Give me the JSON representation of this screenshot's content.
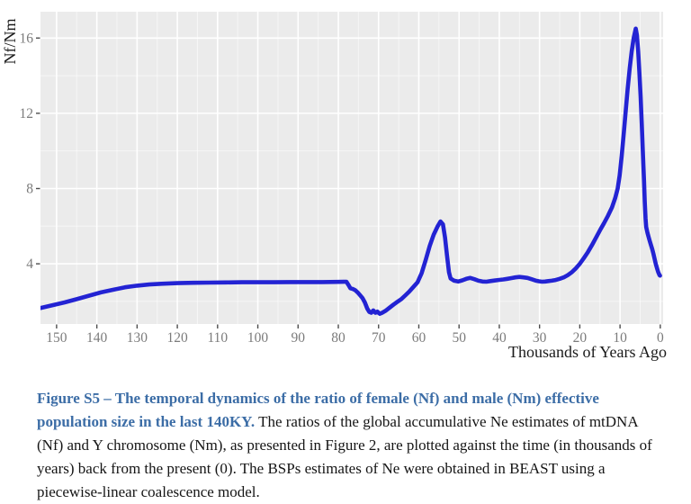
{
  "figure": {
    "y_axis_title": "Nf/Nm",
    "x_axis_title": "Thousands of Years Ago"
  },
  "caption": {
    "title": "Figure S5 – The temporal dynamics of the ratio of female (Nf) and male (Nm) effective population size in the last 140KY.",
    "body": " The ratios of the global accumulative Ne estimates of mtDNA (Nf) and Y chromosome (Nm), as presented in Figure 2, are plotted against the time (in thousands of years) back from the present (0). The BSPs estimates of Ne were obtained in BEAST using a piecewise-linear coalescence model."
  },
  "colors": {
    "line": "#2323d3",
    "panel_background": "#ebebeb",
    "grid_major": "#ffffff",
    "grid_minor": "rgba(255,255,255,0.55)",
    "tick_label": "#7b7b7b",
    "tick_mark": "#4d4d4d",
    "axis_title": "#1a1a1a",
    "caption_accent": "#3c6da6"
  },
  "chart_data": {
    "type": "line",
    "title": "",
    "xlabel": "Thousands of Years Ago",
    "ylabel": "Nf/Nm",
    "legend": "none",
    "grid": "ggplot-style: gray panel, white major gridlines, faint minor gridlines",
    "x_axis_reversed": true,
    "x_ticks": [
      150,
      140,
      130,
      120,
      110,
      100,
      90,
      80,
      70,
      60,
      50,
      40,
      30,
      20,
      10,
      0
    ],
    "y_ticks": [
      4,
      8,
      12,
      16
    ],
    "x_range_left_right": [
      154,
      -0.7
    ],
    "y_range": [
      0.8,
      17.4
    ],
    "series": [
      {
        "name": "Nf/Nm ratio",
        "color": "#2323d3",
        "points": [
          [
            154,
            1.65
          ],
          [
            151,
            1.8
          ],
          [
            148,
            1.95
          ],
          [
            145,
            2.12
          ],
          [
            142,
            2.3
          ],
          [
            139,
            2.48
          ],
          [
            136,
            2.62
          ],
          [
            133,
            2.75
          ],
          [
            130,
            2.84
          ],
          [
            127,
            2.9
          ],
          [
            124,
            2.94
          ],
          [
            120,
            2.97
          ],
          [
            116,
            2.99
          ],
          [
            112,
            3.0
          ],
          [
            108,
            3.01
          ],
          [
            104,
            3.02
          ],
          [
            100,
            3.02
          ],
          [
            96,
            3.02
          ],
          [
            92,
            3.03
          ],
          [
            88,
            3.03
          ],
          [
            84,
            3.03
          ],
          [
            80,
            3.04
          ],
          [
            78,
            3.05
          ],
          [
            77.4,
            2.85
          ],
          [
            77,
            2.7
          ],
          [
            76.4,
            2.66
          ],
          [
            75.8,
            2.6
          ],
          [
            75.2,
            2.48
          ],
          [
            74.6,
            2.33
          ],
          [
            74,
            2.18
          ],
          [
            73.4,
            1.95
          ],
          [
            72.8,
            1.62
          ],
          [
            72.3,
            1.44
          ],
          [
            71.8,
            1.4
          ],
          [
            71.3,
            1.52
          ],
          [
            70.8,
            1.4
          ],
          [
            70.3,
            1.46
          ],
          [
            69.7,
            1.34
          ],
          [
            69.1,
            1.4
          ],
          [
            68.3,
            1.5
          ],
          [
            67.3,
            1.66
          ],
          [
            66.3,
            1.83
          ],
          [
            65.3,
            1.98
          ],
          [
            64.3,
            2.13
          ],
          [
            63.3,
            2.33
          ],
          [
            62.3,
            2.54
          ],
          [
            61.3,
            2.78
          ],
          [
            60.3,
            3.02
          ],
          [
            59.3,
            3.5
          ],
          [
            58.3,
            4.2
          ],
          [
            57.3,
            4.95
          ],
          [
            56.3,
            5.55
          ],
          [
            55.3,
            6.0
          ],
          [
            54.6,
            6.25
          ],
          [
            54,
            6.1
          ],
          [
            53.5,
            5.4
          ],
          [
            53,
            4.45
          ],
          [
            52.5,
            3.55
          ],
          [
            52.1,
            3.22
          ],
          [
            51.2,
            3.1
          ],
          [
            50.2,
            3.06
          ],
          [
            49.2,
            3.12
          ],
          [
            48.2,
            3.2
          ],
          [
            47.2,
            3.25
          ],
          [
            46.2,
            3.18
          ],
          [
            45.2,
            3.1
          ],
          [
            44.2,
            3.06
          ],
          [
            43.2,
            3.05
          ],
          [
            42.2,
            3.08
          ],
          [
            41.2,
            3.11
          ],
          [
            40.2,
            3.14
          ],
          [
            39,
            3.17
          ],
          [
            38,
            3.2
          ],
          [
            37,
            3.24
          ],
          [
            36,
            3.28
          ],
          [
            35,
            3.3
          ],
          [
            34,
            3.28
          ],
          [
            33,
            3.25
          ],
          [
            32,
            3.18
          ],
          [
            31,
            3.11
          ],
          [
            30.2,
            3.07
          ],
          [
            29.4,
            3.05
          ],
          [
            28.6,
            3.06
          ],
          [
            27.8,
            3.08
          ],
          [
            27,
            3.1
          ],
          [
            26,
            3.14
          ],
          [
            25,
            3.2
          ],
          [
            24,
            3.28
          ],
          [
            23,
            3.4
          ],
          [
            22,
            3.55
          ],
          [
            21,
            3.75
          ],
          [
            20,
            4.0
          ],
          [
            19,
            4.3
          ],
          [
            18,
            4.62
          ],
          [
            17,
            4.98
          ],
          [
            16,
            5.38
          ],
          [
            15,
            5.78
          ],
          [
            14,
            6.15
          ],
          [
            13,
            6.55
          ],
          [
            12,
            7.0
          ],
          [
            11.2,
            7.5
          ],
          [
            10.6,
            8.0
          ],
          [
            10.1,
            8.7
          ],
          [
            9.6,
            9.7
          ],
          [
            9.1,
            10.9
          ],
          [
            8.6,
            12.1
          ],
          [
            8.1,
            13.3
          ],
          [
            7.6,
            14.4
          ],
          [
            7.1,
            15.3
          ],
          [
            6.6,
            16.0
          ],
          [
            6.1,
            16.5
          ],
          [
            5.8,
            16.15
          ],
          [
            5.5,
            15.3
          ],
          [
            5.2,
            14.2
          ],
          [
            4.9,
            12.9
          ],
          [
            4.6,
            11.4
          ],
          [
            4.3,
            9.8
          ],
          [
            4.05,
            8.4
          ],
          [
            3.85,
            7.3
          ],
          [
            3.65,
            6.4
          ],
          [
            3.5,
            5.95
          ],
          [
            3.2,
            5.65
          ],
          [
            2.9,
            5.42
          ],
          [
            2.6,
            5.2
          ],
          [
            2.3,
            4.98
          ],
          [
            2,
            4.78
          ],
          [
            1.7,
            4.52
          ],
          [
            1.4,
            4.25
          ],
          [
            1.1,
            3.98
          ],
          [
            0.8,
            3.75
          ],
          [
            0.5,
            3.55
          ],
          [
            0.2,
            3.4
          ],
          [
            0.05,
            3.37
          ]
        ]
      }
    ]
  }
}
